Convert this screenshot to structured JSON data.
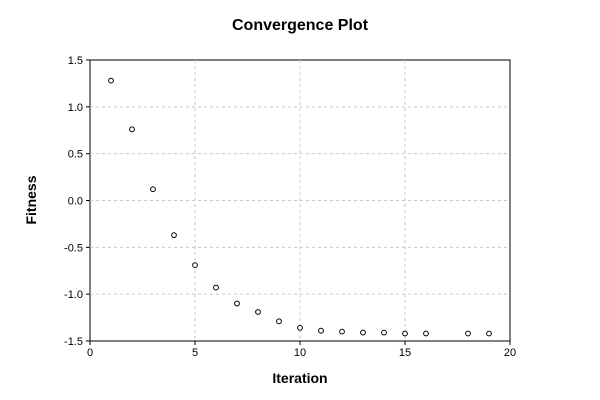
{
  "chart_data": {
    "type": "scatter",
    "title": "Convergence Plot",
    "xlabel": "Iteration",
    "ylabel": "Fitness",
    "xlim": [
      0,
      20
    ],
    "ylim": [
      -1.5,
      1.5
    ],
    "xticks": [
      0,
      5,
      10,
      15,
      20
    ],
    "yticks": [
      -1.5,
      -1.0,
      -0.5,
      0.0,
      0.5,
      1.0,
      1.5
    ],
    "xtick_labels": [
      "0",
      "5",
      "10",
      "15",
      "20"
    ],
    "ytick_labels": [
      "-1.5",
      "-1.0",
      "-0.5",
      "0.0",
      "0.5",
      "1.0",
      "1.5"
    ],
    "grid": true,
    "legend": false,
    "marker": "open-circle",
    "series": [
      {
        "x": [
          1,
          2,
          3,
          4,
          5,
          6,
          7,
          8,
          9,
          10,
          11,
          12,
          13,
          14,
          15,
          16,
          18,
          19
        ],
        "y": [
          1.28,
          0.76,
          0.12,
          -0.37,
          -0.69,
          -0.93,
          -1.1,
          -1.19,
          -1.29,
          -1.36,
          -1.39,
          -1.4,
          -1.41,
          -1.41,
          -1.42,
          -1.42,
          -1.42,
          -1.42
        ]
      }
    ]
  }
}
